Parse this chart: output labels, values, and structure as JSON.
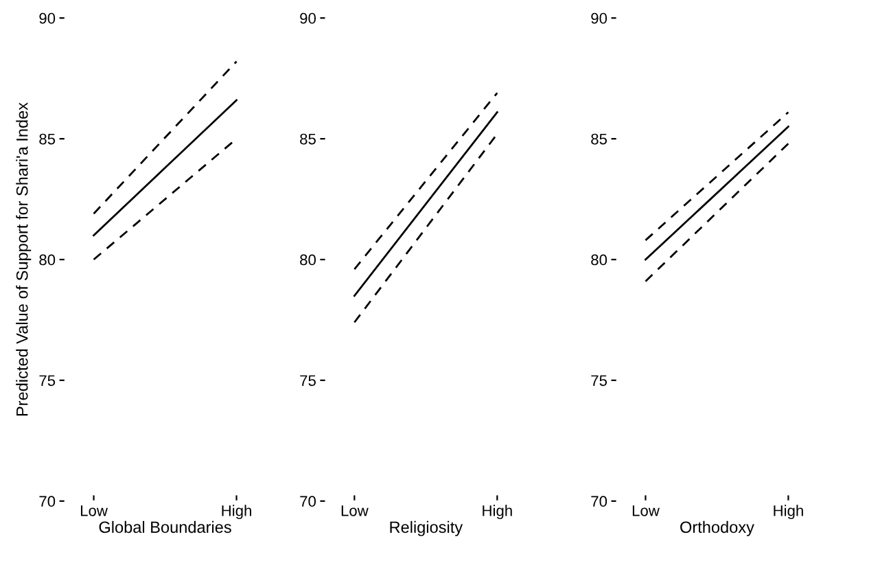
{
  "chart_data": [
    {
      "type": "line",
      "ylabel": "Predicted Value of Support for Shari'a Index",
      "xlabel": "Global Boundaries",
      "categories": [
        "Low",
        "High"
      ],
      "ylim": [
        70,
        90
      ],
      "yticks": [
        70,
        75,
        80,
        85,
        90
      ],
      "series": [
        {
          "values": [
            81.0,
            86.6
          ],
          "color": "#000000",
          "line_style": "solid"
        },
        {
          "values": [
            81.9,
            88.2
          ],
          "color": "#000000",
          "line_style": "dashed"
        },
        {
          "values": [
            80.0,
            85.0
          ],
          "color": "#000000",
          "line_style": "dashed"
        }
      ]
    },
    {
      "type": "line",
      "xlabel": "Religiosity",
      "categories": [
        "Low",
        "High"
      ],
      "ylim": [
        70,
        90
      ],
      "yticks": [
        70,
        75,
        80,
        85,
        90
      ],
      "series": [
        {
          "values": [
            78.5,
            86.1
          ],
          "color": "#000000",
          "line_style": "solid"
        },
        {
          "values": [
            79.6,
            86.9
          ],
          "color": "#000000",
          "line_style": "dashed"
        },
        {
          "values": [
            77.4,
            85.2
          ],
          "color": "#000000",
          "line_style": "dashed"
        }
      ]
    },
    {
      "type": "line",
      "xlabel": "Orthodoxy",
      "categories": [
        "Low",
        "High"
      ],
      "ylim": [
        70,
        90
      ],
      "yticks": [
        70,
        75,
        80,
        85,
        90
      ],
      "series": [
        {
          "values": [
            80.0,
            85.5
          ],
          "color": "#000000",
          "line_style": "solid"
        },
        {
          "values": [
            80.8,
            86.1
          ],
          "color": "#000000",
          "line_style": "dashed"
        },
        {
          "values": [
            79.1,
            84.8
          ],
          "color": "#000000",
          "line_style": "dashed"
        }
      ]
    }
  ]
}
